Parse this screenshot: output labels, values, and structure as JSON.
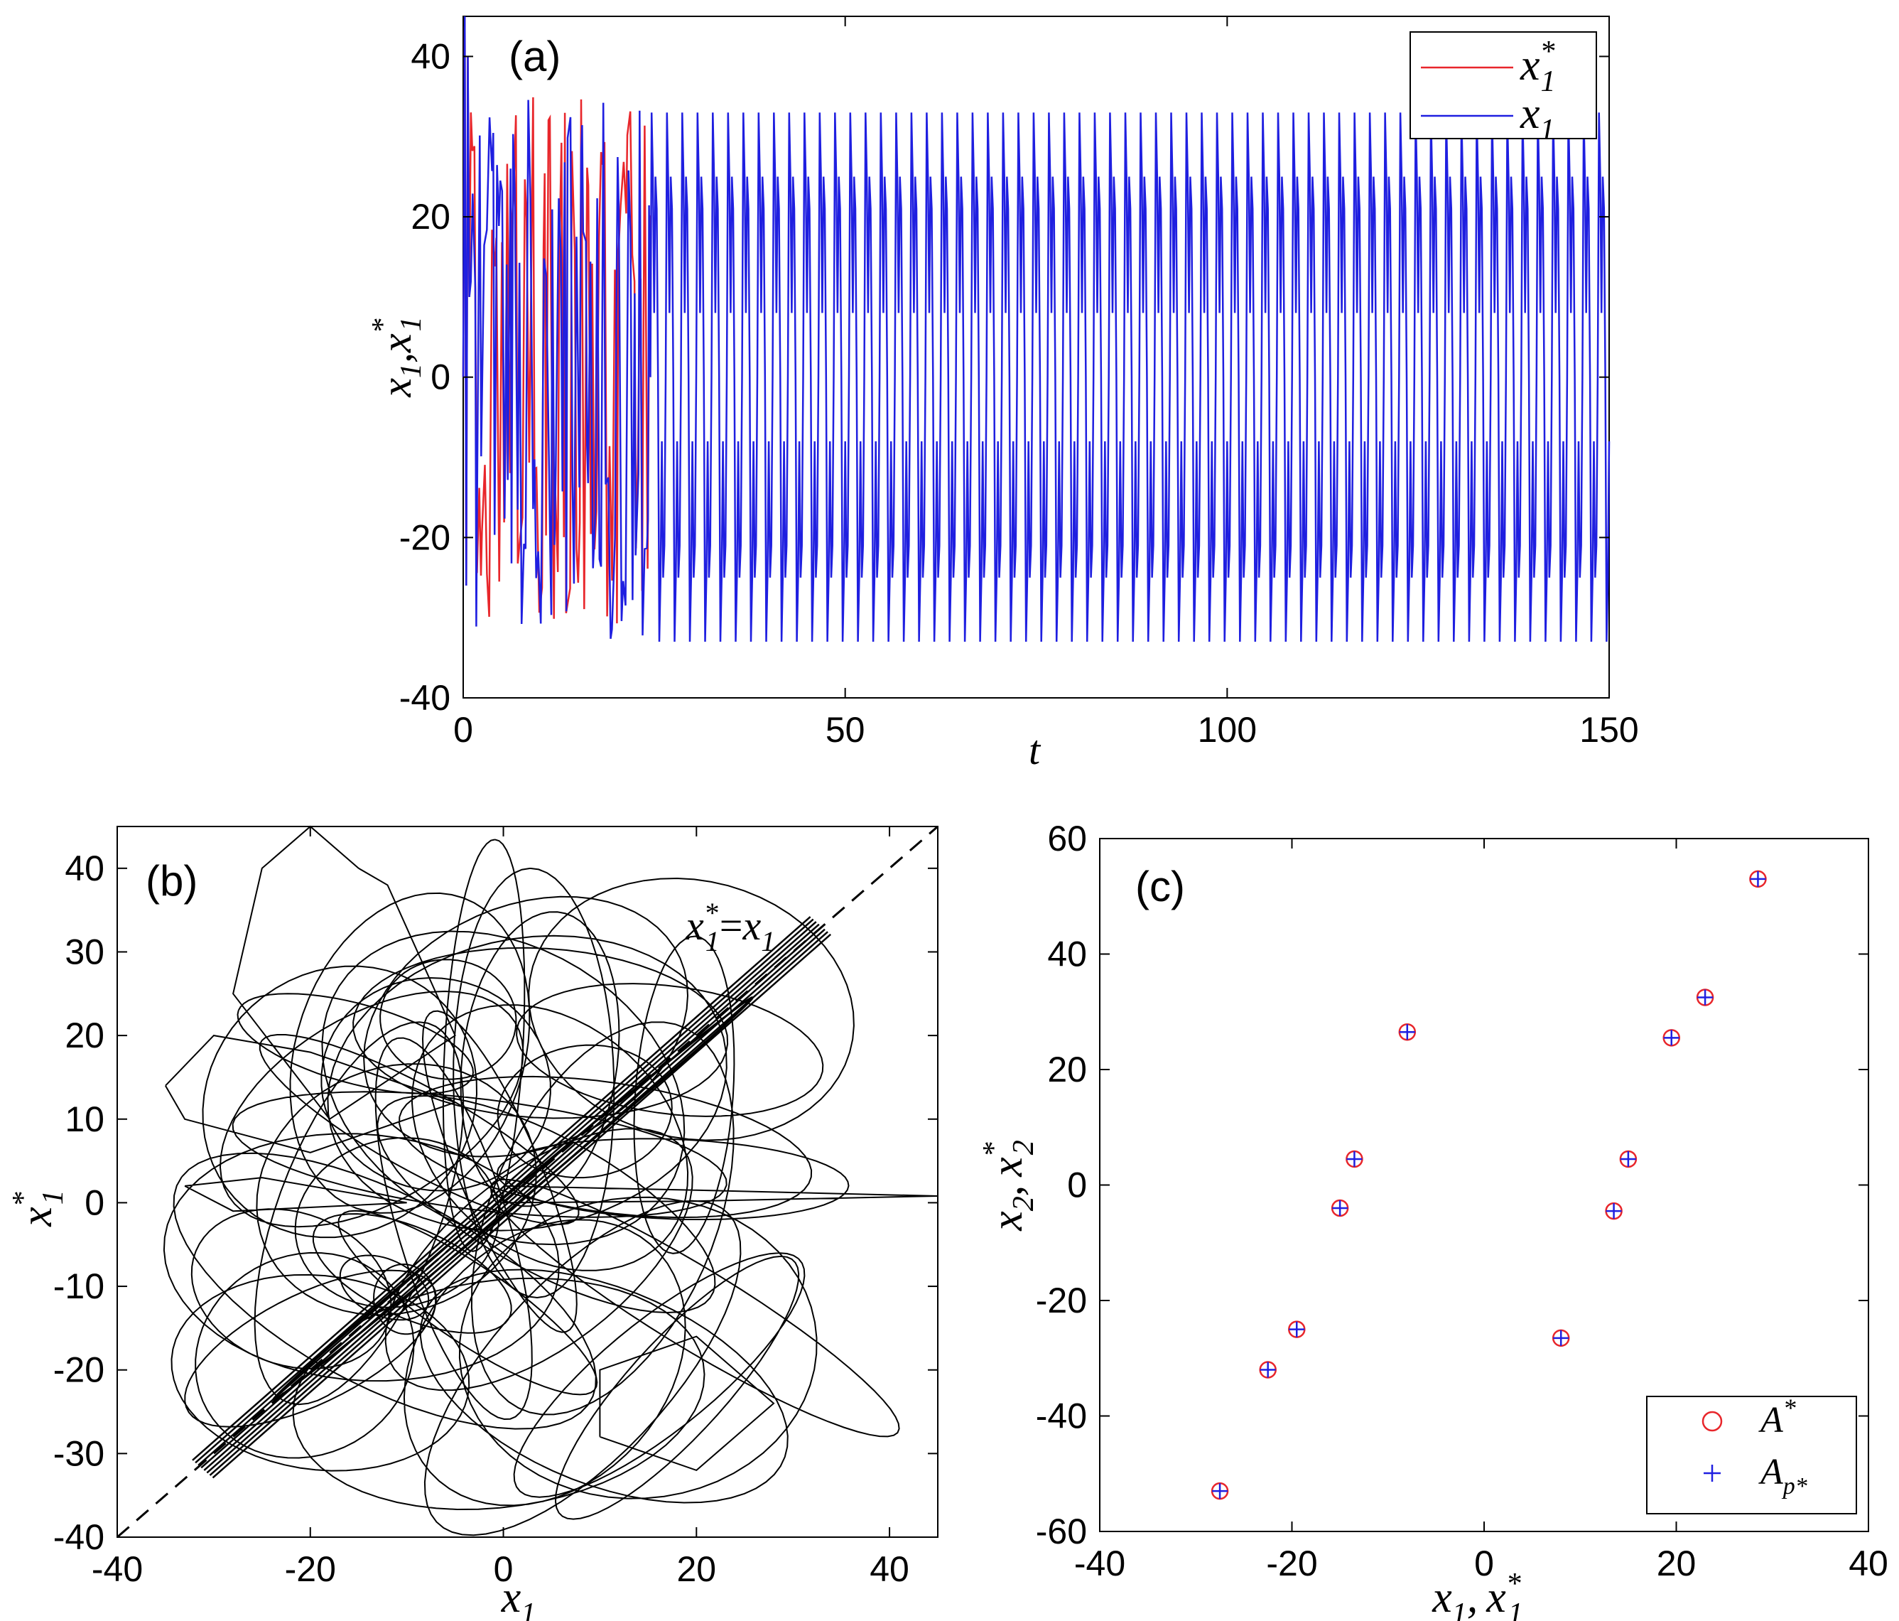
{
  "chart_data": [
    {
      "type": "line",
      "panel_label": "(a)",
      "xlabel": "t",
      "ylabel_main": "x",
      "ylabel_sub1": "1",
      "ylabel_sep": ",",
      "ylabel_main2": "x",
      "ylabel_sup2": "*",
      "ylabel_sub2": "1",
      "xlim": [
        0,
        150
      ],
      "ylim": [
        -40,
        45
      ],
      "xticks": [
        "0",
        "50",
        "100",
        "150"
      ],
      "yticks": [
        "-40",
        "-20",
        "0",
        "20",
        "40"
      ],
      "legend": [
        {
          "label_main": "x",
          "label_sup": "*",
          "label_sub": "1",
          "color": "#e8262b"
        },
        {
          "label_main": "x",
          "label_sup": "",
          "label_sub": "1",
          "color": "#1f1fe0"
        }
      ],
      "series": [
        {
          "name": "x1*",
          "color": "#e8262b",
          "note": "chaotic transient from t=0 to t≈24, amplitude up to ~45 / down to ~-32"
        },
        {
          "name": "x1",
          "color": "#1f1fe0",
          "note": "chaotic transient then periodic oscillation; period ≈ 2.0, peaks 33, dips -33, plateaus ±24, ±8"
        }
      ],
      "periodic_cycle_values": [
        0,
        33,
        25,
        8,
        25,
        21,
        0,
        -33,
        -25,
        -8,
        -25,
        -21,
        0
      ],
      "sync_time": 24.5
    },
    {
      "type": "line",
      "panel_label": "(b)",
      "xlabel_main": "x",
      "xlabel_sub": "1",
      "ylabel_main": "x",
      "ylabel_sup": "*",
      "ylabel_sub": "1",
      "xlim": [
        -40,
        45
      ],
      "ylim": [
        -40,
        45
      ],
      "xticks": [
        "-40",
        "-20",
        "0",
        "20",
        "40"
      ],
      "yticks": [
        "-40",
        "-30",
        "-20",
        "-10",
        "0",
        "10",
        "20",
        "30",
        "40"
      ],
      "annotation": {
        "lhs_main": "x",
        "lhs_sup": "*",
        "lhs_sub": "1",
        "op": "=",
        "rhs_main": "x",
        "rhs_sub": "1"
      },
      "diagonal": {
        "x": [
          -40,
          45
        ],
        "y": [
          -40,
          45
        ],
        "style": "dashed"
      },
      "diagonal_band": {
        "from": [
          -31,
          -32
        ],
        "to": [
          33,
          33
        ]
      }
    },
    {
      "type": "scatter",
      "panel_label": "(c)",
      "xlabel_main": "x",
      "xlabel_sub": "1",
      "xlabel_sep": ",",
      "xlabel_main2": "x",
      "xlabel_sup2": "*",
      "xlabel_sub2": "1",
      "ylabel_main": "x",
      "ylabel_sub": "2",
      "ylabel_sep": ",",
      "ylabel_main2": "x",
      "ylabel_sup2": "*",
      "ylabel_sub2": "2",
      "xlim": [
        -40,
        40
      ],
      "ylim": [
        -60,
        60
      ],
      "xticks": [
        "-40",
        "-20",
        "0",
        "20",
        "40"
      ],
      "yticks": [
        "-60",
        "-40",
        "-20",
        "0",
        "20",
        "40",
        "60"
      ],
      "legend": [
        {
          "symbol": "○",
          "label_main": "A",
          "label_sup": "*",
          "label_sub": "",
          "color": "#e8262b"
        },
        {
          "symbol": "+",
          "label_main": "A",
          "label_sup": "",
          "label_sub": "p*",
          "color": "#1f1fe0"
        }
      ],
      "points": [
        {
          "x": -27.5,
          "y": -53
        },
        {
          "x": -22.5,
          "y": -32
        },
        {
          "x": -19.5,
          "y": -25
        },
        {
          "x": -15,
          "y": -4
        },
        {
          "x": -13.5,
          "y": 4.5
        },
        {
          "x": -8,
          "y": 26.5
        },
        {
          "x": 8,
          "y": -26.5
        },
        {
          "x": 13.5,
          "y": -4.5
        },
        {
          "x": 15,
          "y": 4.5
        },
        {
          "x": 19.5,
          "y": 25.5
        },
        {
          "x": 23,
          "y": 32.5
        },
        {
          "x": 28.5,
          "y": 53
        }
      ]
    }
  ]
}
